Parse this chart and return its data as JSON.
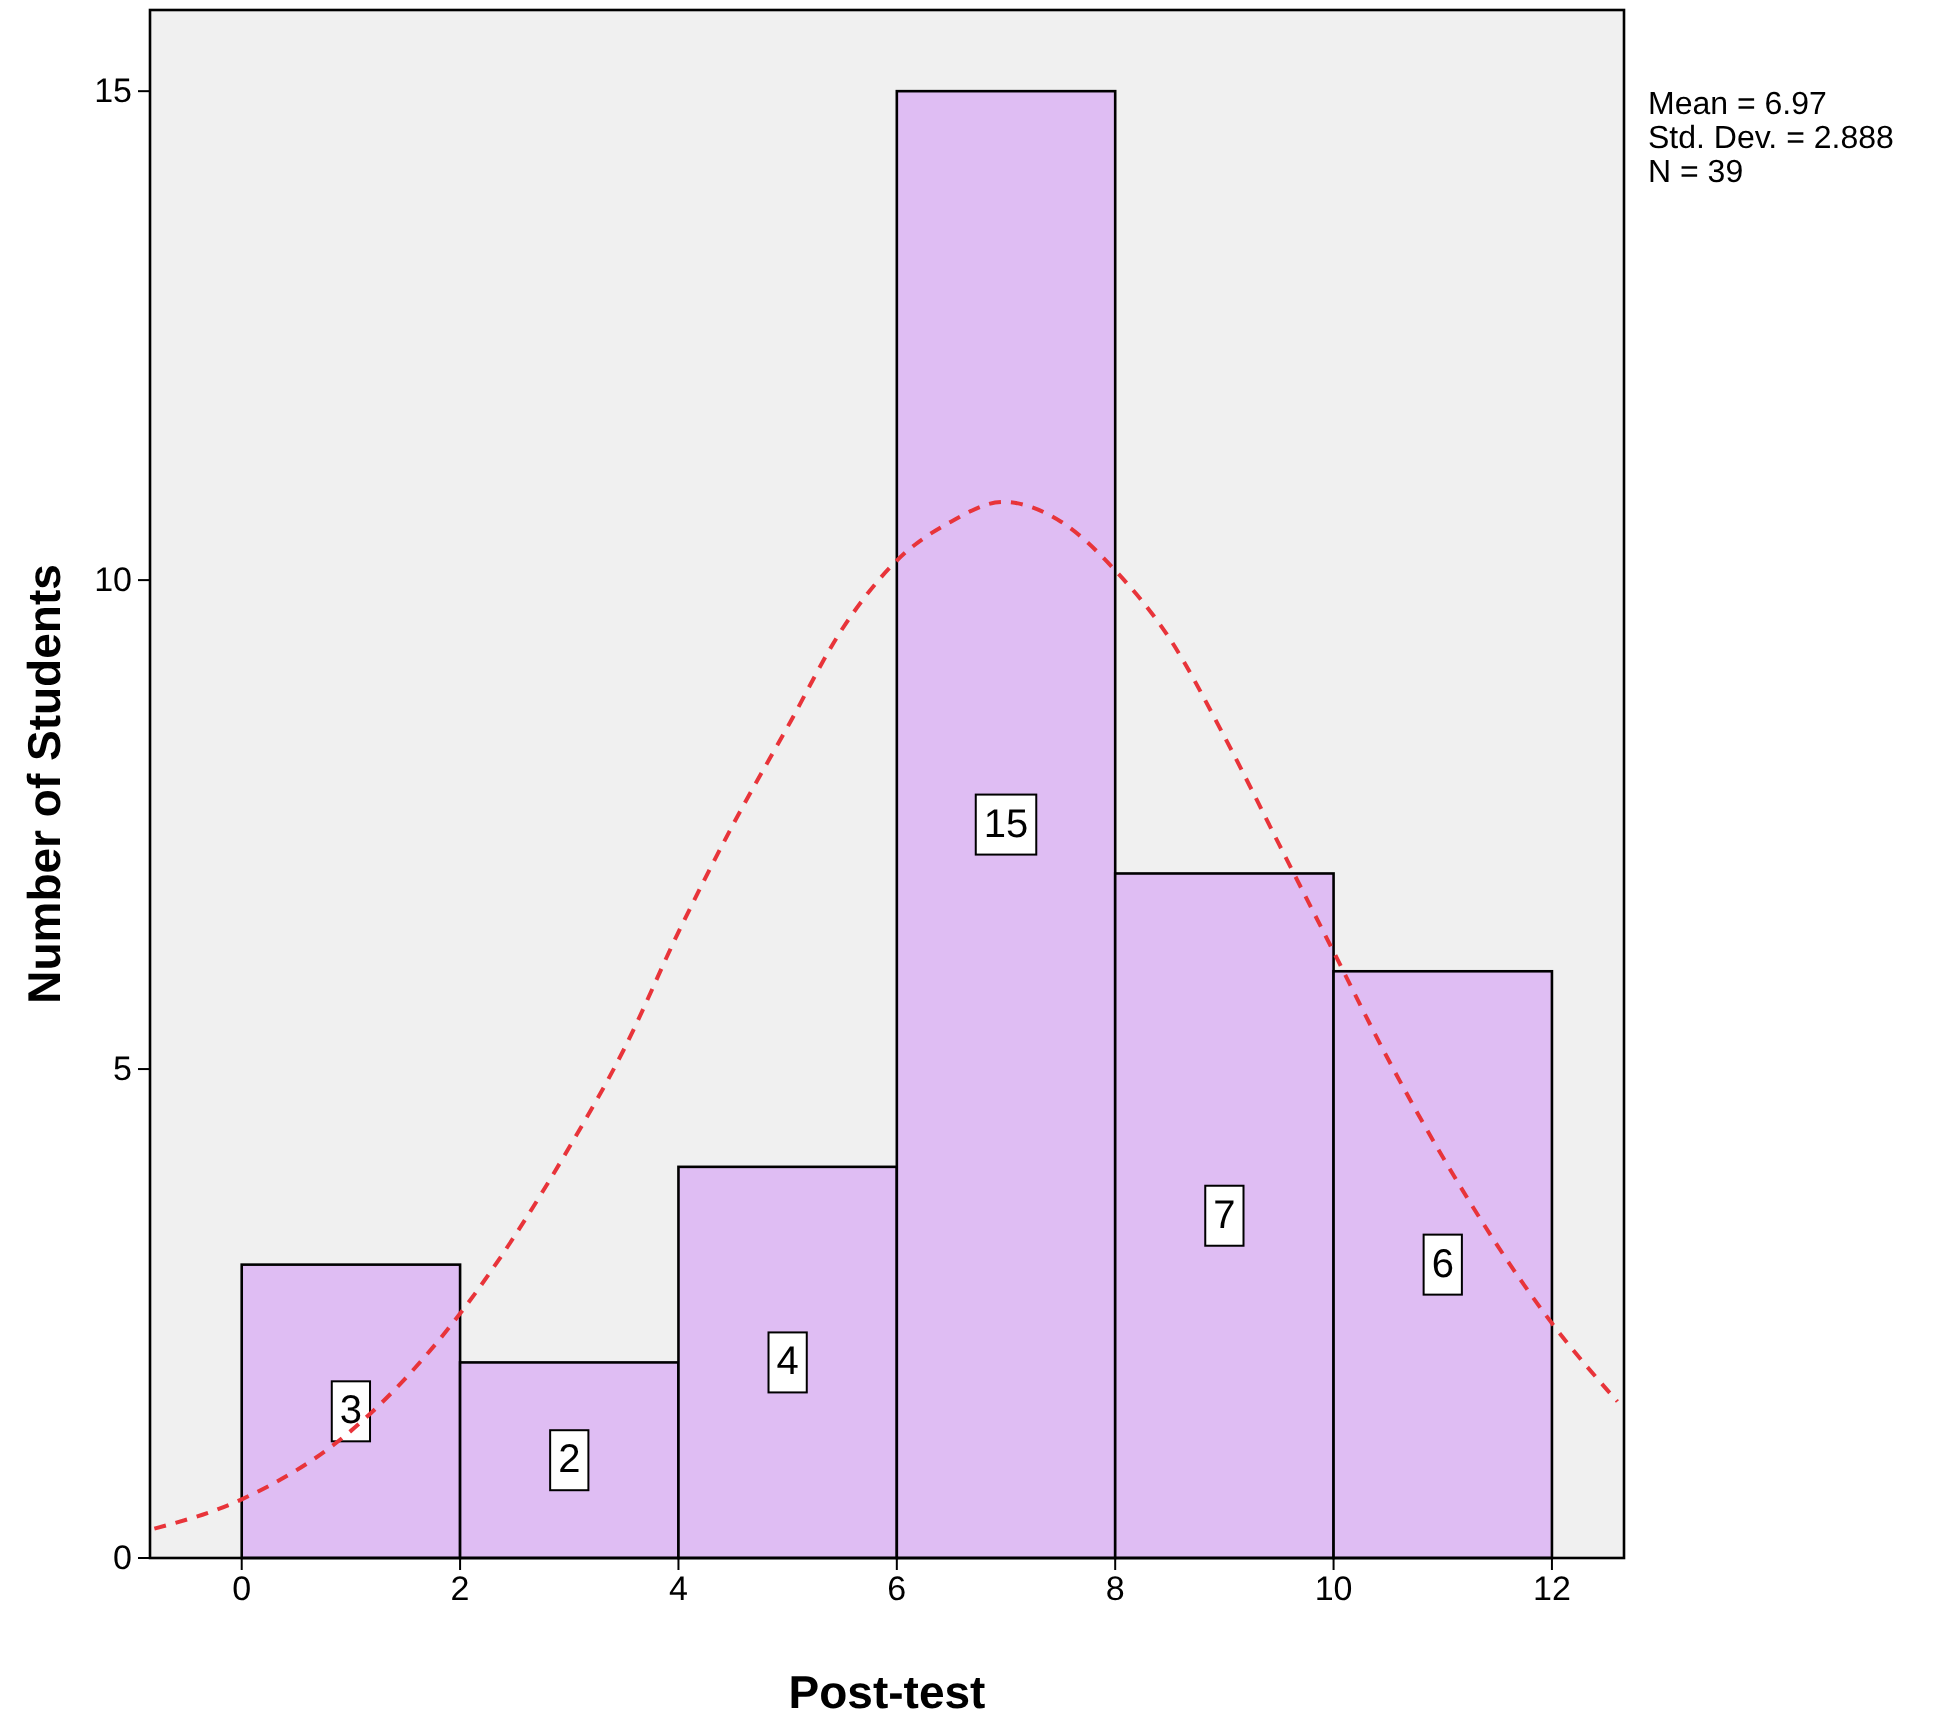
{
  "chart_data": {
    "type": "histogram",
    "xlabel": "Post-test",
    "ylabel": "Number of Students",
    "bins": [
      0,
      2,
      4,
      6,
      8,
      10,
      12
    ],
    "values": [
      3,
      2,
      4,
      15,
      7,
      6
    ],
    "color": "#dfbdf3",
    "value_labels": [
      "3",
      "2",
      "4",
      "15",
      "7",
      "6"
    ],
    "series": [
      {
        "type": "line",
        "color": "#e8343a",
        "line_style": "dashed",
        "marker": "none",
        "x": [
          -0.8,
          0,
          1,
          2,
          3,
          3.5,
          4,
          4.5,
          5,
          5.5,
          6,
          6.5,
          6.97,
          7.5,
          8,
          8.5,
          9,
          9.5,
          10,
          10.5,
          11,
          12,
          12.6
        ],
        "values": [
          0.3,
          0.6,
          1.3,
          2.5,
          4.2,
          5.2,
          6.4,
          7.5,
          8.5,
          9.5,
          10.2,
          10.6,
          10.8,
          10.6,
          10.1,
          9.4,
          8.4,
          7.3,
          6.2,
          5.1,
          4.1,
          2.4,
          1.6
        ]
      }
    ],
    "annotations": [
      "Mean = 6.97",
      "Std. Dev. = 2.888",
      "N = 39"
    ],
    "xlim": [
      -0.84,
      12.66
    ],
    "ylim": [
      0,
      15.83
    ],
    "xticks": [
      0,
      2,
      4,
      6,
      8,
      10,
      12
    ],
    "yticks": [
      0,
      5,
      10,
      15
    ],
    "grid": false
  }
}
